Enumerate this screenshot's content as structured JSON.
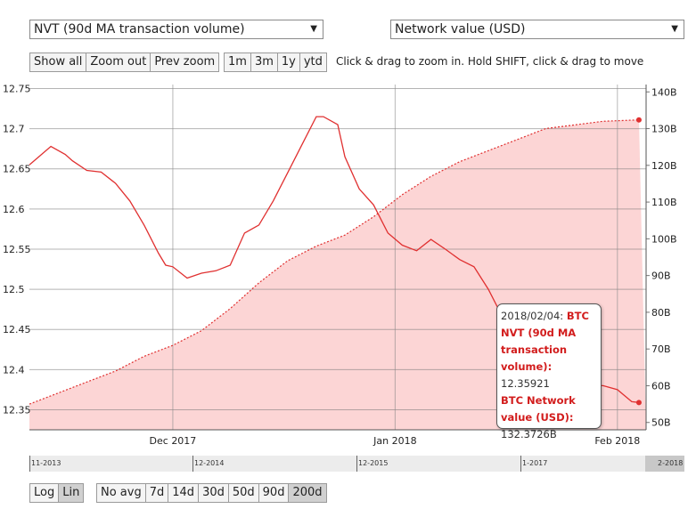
{
  "controls": {
    "left_select": "NVT (90d MA transaction volume)",
    "right_select": "Network value (USD)",
    "zoom_buttons": [
      "Show all",
      "Zoom out",
      "Prev zoom"
    ],
    "range_buttons": [
      "1m",
      "3m",
      "1y",
      "ytd"
    ],
    "hint": "Click & drag to zoom in. Hold SHIFT, click & drag to move",
    "scale_buttons": [
      "Log",
      "Lin"
    ],
    "scale_active": "Lin",
    "avg_buttons": [
      "No avg",
      "7d",
      "14d",
      "30d",
      "50d",
      "90d",
      "200d"
    ],
    "avg_active": "200d"
  },
  "navigator": {
    "labels": [
      "11-2013",
      "12-2014",
      "12-2015",
      "1-2017",
      "2-2018"
    ]
  },
  "tooltip": {
    "date": "2018/02/04:",
    "series1_name": "BTC NVT (90d MA transaction volume):",
    "series1_value": "12.35921",
    "series2_name": "BTC Network value (USD):",
    "series2_value": "132.3726B"
  },
  "chart_data": {
    "type": "line",
    "title": "",
    "x_ticks": [
      "Dec 2017",
      "Jan 2018",
      "Feb 2018"
    ],
    "y_left": {
      "ticks": [
        "12.75",
        "12.7",
        "12.65",
        "12.6",
        "12.55",
        "12.5",
        "12.45",
        "12.4",
        "12.35"
      ],
      "min": 12.325,
      "max": 12.755
    },
    "y_right": {
      "ticks": [
        "140B",
        "130B",
        "120B",
        "110B",
        "100B",
        "90B",
        "80B",
        "70B",
        "60B",
        "50B"
      ],
      "min": 48,
      "max": 142
    },
    "grid": true,
    "series": [
      {
        "name": "BTC NVT (90d MA transaction volume)",
        "axis": "left",
        "color": "#e03030",
        "x": [
          "2017-11-11",
          "2017-11-14",
          "2017-11-16",
          "2017-11-17",
          "2017-11-19",
          "2017-11-21",
          "2017-11-23",
          "2017-11-25",
          "2017-11-27",
          "2017-11-29",
          "2017-11-30",
          "2017-12-01",
          "2017-12-03",
          "2017-12-05",
          "2017-12-07",
          "2017-12-09",
          "2017-12-11",
          "2017-12-13",
          "2017-12-15",
          "2017-12-17",
          "2017-12-19",
          "2017-12-21",
          "2017-12-22",
          "2017-12-24",
          "2017-12-25",
          "2017-12-27",
          "2017-12-29",
          "2017-12-31",
          "2018-01-02",
          "2018-01-04",
          "2018-01-06",
          "2018-01-08",
          "2018-01-10",
          "2018-01-12",
          "2018-01-14",
          "2018-01-16",
          "2018-01-18",
          "2018-01-20",
          "2018-01-22",
          "2018-01-24",
          "2018-01-26",
          "2018-01-28",
          "2018-01-30",
          "2018-02-01",
          "2018-02-03",
          "2018-02-04"
        ],
        "values": [
          12.655,
          12.678,
          12.668,
          12.66,
          12.648,
          12.646,
          12.632,
          12.61,
          12.58,
          12.545,
          12.53,
          12.528,
          12.514,
          12.52,
          12.523,
          12.53,
          12.57,
          12.58,
          12.61,
          12.645,
          12.68,
          12.715,
          12.715,
          12.705,
          12.665,
          12.625,
          12.605,
          12.57,
          12.555,
          12.548,
          12.562,
          12.55,
          12.537,
          12.528,
          12.5,
          12.465,
          12.44,
          12.43,
          12.41,
          12.39,
          12.388,
          12.38,
          12.38,
          12.375,
          12.36,
          12.359
        ]
      },
      {
        "name": "BTC Network value (USD)",
        "axis": "right",
        "color": "#e03030",
        "fill": "#fcd5d5",
        "x": [
          "2017-11-11",
          "2017-11-15",
          "2017-11-19",
          "2017-11-23",
          "2017-11-27",
          "2017-12-01",
          "2017-12-05",
          "2017-12-09",
          "2017-12-13",
          "2017-12-17",
          "2017-12-21",
          "2017-12-25",
          "2017-12-29",
          "2018-01-02",
          "2018-01-06",
          "2018-01-10",
          "2018-01-14",
          "2018-01-18",
          "2018-01-22",
          "2018-01-26",
          "2018-01-30",
          "2018-02-04"
        ],
        "values": [
          55,
          58,
          61,
          64,
          68,
          71,
          75,
          81,
          88,
          94,
          98,
          101,
          106,
          112,
          117,
          121,
          124,
          127,
          130,
          131,
          132,
          132.3726
        ]
      }
    ]
  }
}
